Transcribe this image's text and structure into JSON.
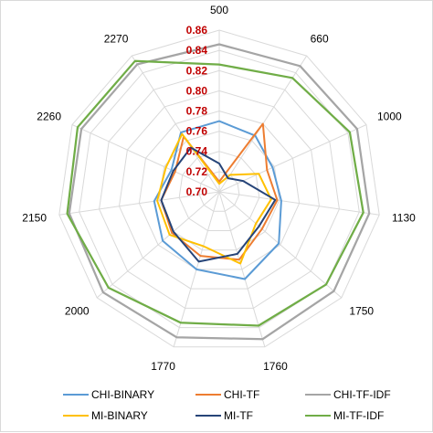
{
  "chart_data": {
    "type": "radar",
    "title": "",
    "categories": [
      "500",
      "660",
      "1000",
      "1130",
      "1750",
      "1760",
      "1770",
      "2000",
      "2150",
      "2260",
      "2270"
    ],
    "rlim": [
      0.7,
      0.86
    ],
    "ticks": [
      "0.70",
      "0.72",
      "0.74",
      "0.76",
      "0.78",
      "0.80",
      "0.82",
      "0.84",
      "0.86"
    ],
    "tick_values": [
      0.7,
      0.72,
      0.74,
      0.76,
      0.78,
      0.8,
      0.82,
      0.84,
      0.86
    ],
    "tick_color": "#c00000",
    "grid": true,
    "legend_position": "bottom",
    "series": [
      {
        "name": "CHI-BINARY",
        "color": "#5b9bd5",
        "values": [
          0.77,
          0.766,
          0.758,
          0.762,
          0.778,
          0.79,
          0.78,
          0.774,
          0.765,
          0.752,
          0.77
        ]
      },
      {
        "name": "CHI-TF",
        "color": "#ed7d31",
        "values": [
          0.71,
          0.78,
          0.752,
          0.758,
          0.756,
          0.77,
          0.766,
          0.762,
          0.758,
          0.748,
          0.765
        ]
      },
      {
        "name": "CHI-TF-IDF",
        "color": "#a5a5a5",
        "values": [
          0.846,
          0.848,
          0.85,
          0.85,
          0.85,
          0.852,
          0.85,
          0.852,
          0.85,
          0.85,
          0.85
        ]
      },
      {
        "name": "MI-BINARY",
        "color": "#ffc000",
        "values": [
          0.708,
          0.72,
          0.743,
          0.752,
          0.748,
          0.774,
          0.756,
          0.765,
          0.762,
          0.758,
          0.768
        ]
      },
      {
        "name": "MI-TF",
        "color": "#264478",
        "values": [
          0.728,
          0.716,
          0.726,
          0.756,
          0.752,
          0.764,
          0.772,
          0.76,
          0.758,
          0.75,
          0.752
        ]
      },
      {
        "name": "MI-TF-IDF",
        "color": "#70ad47",
        "values": [
          0.826,
          0.834,
          0.842,
          0.844,
          0.84,
          0.838,
          0.835,
          0.845,
          0.852,
          0.854,
          0.854
        ]
      }
    ]
  }
}
